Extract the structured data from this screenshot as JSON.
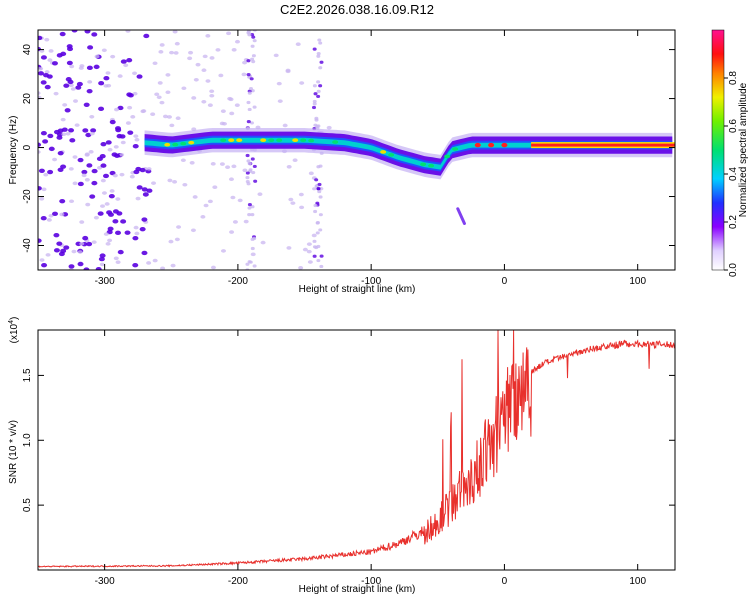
{
  "title": "C2E2.2026.038.16.09.R12",
  "colors": {
    "signal_line": "#e8302c",
    "dots_strong": "#5a00e0",
    "dots_light": "#c9b6f0",
    "band_core": "#00d0d0",
    "band_hot": "#ff2020"
  },
  "chart_data": [
    {
      "type": "heatmap",
      "name": "spectrogram",
      "xlabel": "Height of straight line (km)",
      "ylabel": "Frequency (Hz)",
      "xlim": [
        -350,
        128
      ],
      "ylim": [
        -50,
        48
      ],
      "xticks": [
        -300,
        -200,
        -100,
        0,
        100
      ],
      "yticks": [
        -40,
        -20,
        0,
        20,
        40
      ],
      "xtick_labels": [
        "-300",
        "-200",
        "-100",
        "0",
        "100"
      ],
      "ytick_labels": [
        "-40",
        "-20",
        "0",
        "20",
        "40"
      ],
      "colorbar": {
        "label": "Normalized spectral amplitude",
        "range": [
          0,
          1
        ],
        "ticks": [
          0.0,
          0.2,
          0.4,
          0.6,
          0.8
        ],
        "tick_labels": [
          "0.0",
          "0.2",
          "0.4",
          "0.6",
          "0.8"
        ]
      },
      "band_centerline": [
        {
          "x": -270,
          "y": 2
        },
        {
          "x": -250,
          "y": 1
        },
        {
          "x": -220,
          "y": 3
        },
        {
          "x": -200,
          "y": 3
        },
        {
          "x": -175,
          "y": 3
        },
        {
          "x": -150,
          "y": 3
        },
        {
          "x": -120,
          "y": 2
        },
        {
          "x": -100,
          "y": 0
        },
        {
          "x": -80,
          "y": -4
        },
        {
          "x": -60,
          "y": -7
        },
        {
          "x": -48,
          "y": -8
        },
        {
          "x": -40,
          "y": -1
        },
        {
          "x": -25,
          "y": 1
        },
        {
          "x": 0,
          "y": 1
        },
        {
          "x": 30,
          "y": 1
        },
        {
          "x": 128,
          "y": 1
        }
      ],
      "side_streak": [
        {
          "x": -35,
          "y": -25
        },
        {
          "x": -30,
          "y": -31
        }
      ]
    },
    {
      "type": "line",
      "name": "snr",
      "xlabel": "Height of straight line (km)",
      "ylabel": "SNR (10 * v/v)",
      "ylabel_exponent": "(x10",
      "exponent_power": "4",
      "xlim": [
        -350,
        128
      ],
      "ylim": [
        0,
        18500
      ],
      "xticks": [
        -300,
        -200,
        -100,
        0,
        100
      ],
      "yticks": [
        5000,
        10000,
        15000
      ],
      "xtick_labels": [
        "-300",
        "-200",
        "-100",
        "0",
        "100"
      ],
      "ytick_labels": [
        "0.5",
        "1.0",
        "1.5"
      ],
      "envelope": [
        {
          "x": -350,
          "y": 250
        },
        {
          "x": -250,
          "y": 300
        },
        {
          "x": -200,
          "y": 500
        },
        {
          "x": -150,
          "y": 800
        },
        {
          "x": -100,
          "y": 1300
        },
        {
          "x": -80,
          "y": 1900
        },
        {
          "x": -60,
          "y": 2800
        },
        {
          "x": -45,
          "y": 4500
        },
        {
          "x": -35,
          "y": 6000
        },
        {
          "x": -25,
          "y": 7000
        },
        {
          "x": -15,
          "y": 9000
        },
        {
          "x": -5,
          "y": 11000
        },
        {
          "x": 5,
          "y": 13500
        },
        {
          "x": 15,
          "y": 15000
        },
        {
          "x": 30,
          "y": 16000
        },
        {
          "x": 60,
          "y": 17000
        },
        {
          "x": 90,
          "y": 17500
        },
        {
          "x": 128,
          "y": 17400
        }
      ]
    }
  ]
}
